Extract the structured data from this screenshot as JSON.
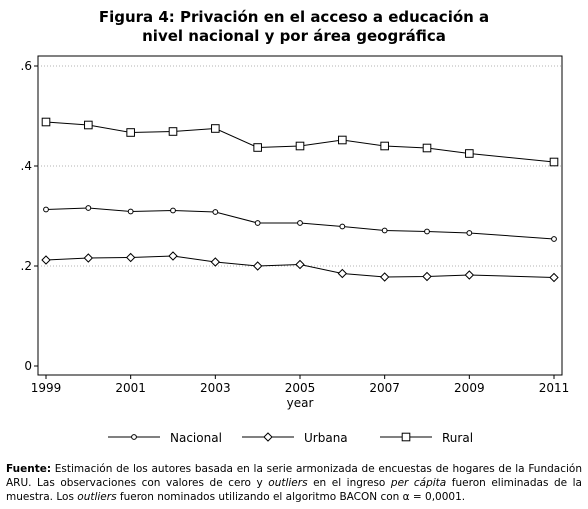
{
  "figure": {
    "title_line1": "Figura 4: Privación en el acceso a educación a",
    "title_line2": "nivel nacional y por área geográfica"
  },
  "note": {
    "label": "Fuente:",
    "text_1": " Estimación de los autores basada en la serie armonizada de encuestas de hogares de la Fundación ARU. Las observaciones con valores de cero y ",
    "italic_1": "outliers",
    "text_2": " en el ingreso ",
    "italic_2": "per cápita",
    "text_3": " fueron eliminadas de la muestra. Los ",
    "italic_3": "outliers",
    "text_4": " fueron nominados utilizando el algoritmo BACON con α = 0,0001."
  },
  "chart_data": {
    "type": "line",
    "title": "Figura 4: Privación en el acceso a educación a nivel nacional y por área geográfica",
    "xlabel": "year",
    "ylabel": "",
    "x": [
      1999,
      2000,
      2001,
      2002,
      2003,
      2004,
      2005,
      2006,
      2007,
      2008,
      2009,
      2011
    ],
    "xlim": [
      1999,
      2011
    ],
    "ylim": [
      0,
      0.6
    ],
    "xticks": [
      1999,
      2001,
      2003,
      2005,
      2007,
      2009,
      2011
    ],
    "xtick_labels": [
      "1999",
      "2001",
      "2003",
      "2005",
      "2007",
      "2009",
      "2011"
    ],
    "yticks": [
      0,
      0.2,
      0.4,
      0.6
    ],
    "ytick_labels": [
      "0",
      ".2",
      ".4",
      ".6"
    ],
    "grid": "horizontal-dotted",
    "legend_position": "bottom",
    "series": [
      {
        "name": "Nacional",
        "marker": "circle",
        "values": [
          0.313,
          0.316,
          0.309,
          0.311,
          0.308,
          0.286,
          0.286,
          0.279,
          0.271,
          0.269,
          0.266,
          0.254
        ]
      },
      {
        "name": "Urbana",
        "marker": "diamond",
        "values": [
          0.212,
          0.216,
          0.217,
          0.22,
          0.208,
          0.2,
          0.203,
          0.185,
          0.178,
          0.179,
          0.182,
          0.177
        ]
      },
      {
        "name": "Rural",
        "marker": "square",
        "values": [
          0.488,
          0.482,
          0.467,
          0.469,
          0.475,
          0.437,
          0.44,
          0.452,
          0.44,
          0.436,
          0.425,
          0.408
        ]
      }
    ]
  }
}
